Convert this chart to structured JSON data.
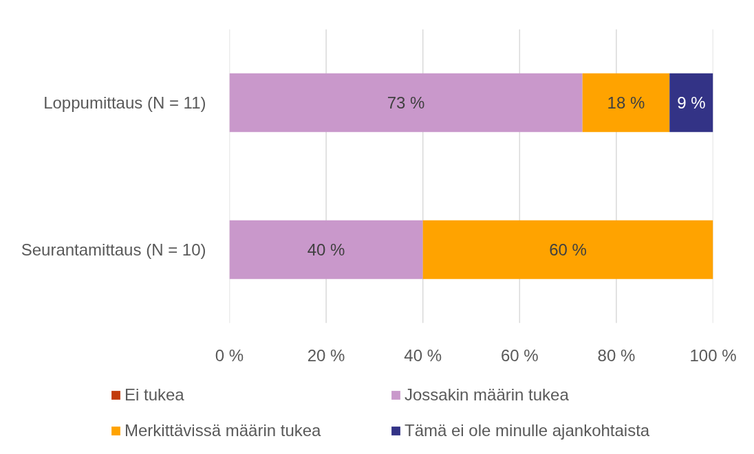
{
  "chart_data": {
    "type": "bar",
    "orientation": "horizontal",
    "stacked": true,
    "categories": [
      "Loppumittaus (N = 11)",
      "Seurantamittaus (N = 10)"
    ],
    "series": [
      {
        "name": "Ei tukea",
        "color": "#c23b0b",
        "values": [
          0,
          0
        ]
      },
      {
        "name": "Jossakin määrin tukea",
        "color": "#c998cb",
        "values": [
          73,
          40
        ],
        "value_labels": [
          "73 %",
          "40 %"
        ]
      },
      {
        "name": "Merkittävissä määrin tukea",
        "color": "#ffa300",
        "values": [
          18,
          60
        ],
        "value_labels": [
          "18 %",
          "60 %"
        ]
      },
      {
        "name": "Tämä ei ole minulle ajankohtaista",
        "color": "#333386",
        "values": [
          9,
          0
        ],
        "value_labels": [
          "9 %",
          null
        ]
      }
    ],
    "xlim": [
      0,
      100
    ],
    "xticks": [
      {
        "value": 0,
        "label": "0 %"
      },
      {
        "value": 20,
        "label": "20 %"
      },
      {
        "value": 40,
        "label": "40 %"
      },
      {
        "value": 60,
        "label": "60 %"
      },
      {
        "value": 80,
        "label": "80 %"
      },
      {
        "value": 100,
        "label": "100 %"
      }
    ],
    "grid": "x",
    "legend": "bottom"
  }
}
